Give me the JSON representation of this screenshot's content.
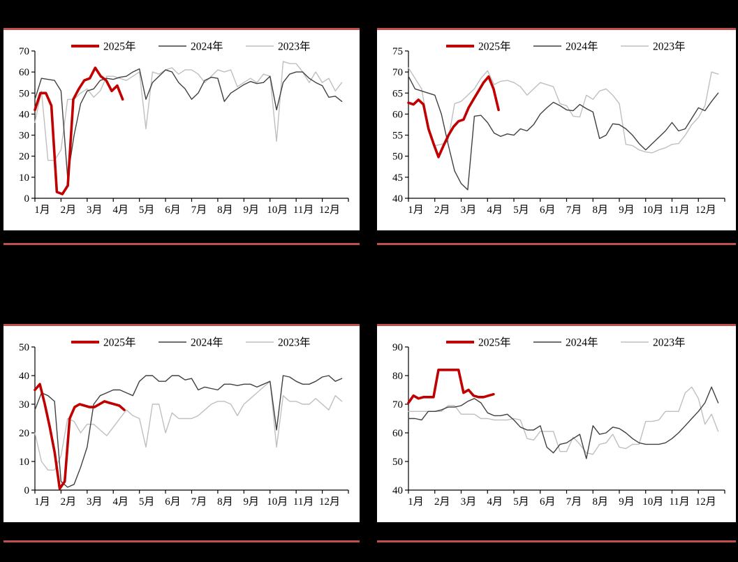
{
  "page": {
    "background": "#000000",
    "card_background": "#ffffff",
    "rule_color": "#C0504D",
    "text_color": "#000000",
    "axis_color": "#000000"
  },
  "chart_data": [
    {
      "id": "top-left",
      "type": "line",
      "grid": false,
      "legend_position": "top",
      "legend": [
        "2025年",
        "2024年",
        "2023年"
      ],
      "x_categories": [
        "1月",
        "2月",
        "3月",
        "4月",
        "5月",
        "6月",
        "7月",
        "8月",
        "9月",
        "10月",
        "11月",
        "12月"
      ],
      "ylim": [
        0,
        70
      ],
      "ytick_step": 10,
      "series": [
        {
          "name": "2025年",
          "color": "#C00000",
          "stroke_width": 3.6,
          "x_step_months": 0.21,
          "values": [
            42,
            50,
            50,
            44,
            3,
            2,
            6,
            47,
            52,
            56,
            57,
            62,
            58,
            56,
            51,
            53.5,
            47
          ]
        },
        {
          "name": "2024年",
          "color": "#404040",
          "stroke_width": 1.4,
          "x_step_months": 0.25,
          "values": [
            47,
            57,
            56.5,
            56,
            51,
            10,
            30,
            45,
            51,
            52,
            56,
            57,
            56.5,
            57.5,
            58,
            60,
            61.5,
            47,
            55,
            58,
            61,
            60,
            55,
            52,
            47,
            50,
            56,
            57.5,
            57,
            46,
            50,
            52,
            54,
            55.5,
            54.5,
            55,
            58,
            42,
            55,
            59,
            60,
            60,
            57,
            55,
            53.5,
            48,
            48.5,
            46
          ]
        },
        {
          "name": "2023年",
          "color": "#BFBFBF",
          "stroke_width": 1.4,
          "x_step_months": 0.25,
          "values": [
            36,
            51,
            18,
            18,
            23,
            47,
            47,
            50,
            52,
            48,
            51,
            58,
            58,
            57,
            56,
            58,
            60,
            33,
            60,
            59,
            61,
            62,
            59,
            61,
            61,
            59,
            55,
            58,
            61,
            60,
            61,
            53,
            55,
            57,
            55,
            59,
            58,
            27,
            65,
            64,
            64,
            60,
            55,
            60,
            55,
            57,
            51,
            55
          ]
        }
      ]
    },
    {
      "id": "top-right",
      "type": "line",
      "grid": false,
      "legend_position": "top",
      "legend": [
        "2025年",
        "2024年",
        "2023年"
      ],
      "x_categories": [
        "1月",
        "2月",
        "3月",
        "4月",
        "5月",
        "6月",
        "7月",
        "8月",
        "9月",
        "10月",
        "11月",
        "12月"
      ],
      "ylim": [
        40,
        75
      ],
      "ytick_step": 5,
      "series": [
        {
          "name": "2025年",
          "color": "#C00000",
          "stroke_width": 3.6,
          "x_step_months": 0.19,
          "values": [
            62.7,
            62.3,
            63.4,
            62.3,
            56.5,
            53,
            49.8,
            52.5,
            55,
            57,
            58.3,
            58.7,
            61.5,
            63.5,
            65.5,
            67.5,
            68.9,
            66,
            61
          ]
        },
        {
          "name": "2024年",
          "color": "#404040",
          "stroke_width": 1.4,
          "x_step_months": 0.25,
          "values": [
            69,
            66,
            65.5,
            65,
            64.5,
            60,
            53,
            46.5,
            43.5,
            42,
            59.5,
            59.7,
            58,
            55.5,
            54.7,
            55.3,
            55,
            56.5,
            56,
            57.5,
            60,
            61.5,
            62.8,
            62,
            61,
            60.8,
            62.3,
            61.3,
            60.5,
            54.2,
            55,
            57.7,
            57.5,
            56.5,
            55,
            53,
            51.5,
            53,
            54.5,
            56,
            58,
            56,
            56.5,
            59,
            61.5,
            60.8,
            63,
            65
          ]
        },
        {
          "name": "2023年",
          "color": "#BFBFBF",
          "stroke_width": 1.4,
          "x_step_months": 0.25,
          "values": [
            71,
            68.5,
            66,
            57,
            52.5,
            52.8,
            53.5,
            62.5,
            63,
            64.5,
            66,
            68.5,
            70.3,
            67,
            67.8,
            68,
            67.5,
            66.5,
            64.5,
            66,
            67.5,
            67,
            66.5,
            62.5,
            62,
            59.5,
            59.3,
            64.5,
            63.5,
            65.5,
            66,
            64.5,
            62.5,
            52.8,
            52.5,
            51.5,
            51,
            50.8,
            51.5,
            52,
            52.8,
            53,
            55,
            57.5,
            59.2,
            62,
            70,
            69.5
          ]
        }
      ]
    },
    {
      "id": "bottom-left",
      "type": "line",
      "grid": false,
      "legend_position": "top",
      "legend": [
        "2025年",
        "2024年",
        "2023年"
      ],
      "x_categories": [
        "1月",
        "2月",
        "3月",
        "4月",
        "5月",
        "6月",
        "7月",
        "8月",
        "9月",
        "10月",
        "11月",
        "12月"
      ],
      "ylim": [
        0,
        50
      ],
      "ytick_step": 10,
      "series": [
        {
          "name": "2025年",
          "color": "#C00000",
          "stroke_width": 3.6,
          "x_step_months": 0.19,
          "values": [
            35,
            37,
            30,
            22,
            13,
            0.5,
            3,
            25,
            29,
            30,
            29.5,
            29,
            29,
            30,
            31,
            30.5,
            30,
            29.5,
            28
          ]
        },
        {
          "name": "2024年",
          "color": "#404040",
          "stroke_width": 1.4,
          "x_step_months": 0.25,
          "values": [
            28,
            34,
            33,
            31,
            3,
            1,
            2,
            8,
            15,
            30,
            33,
            34,
            35,
            35,
            34,
            33,
            38,
            40,
            40,
            38,
            38,
            40,
            40,
            38.5,
            39,
            35,
            36,
            35.5,
            35,
            37,
            37,
            36.5,
            37,
            37,
            36,
            37,
            38,
            21,
            40,
            39.5,
            38,
            37,
            37,
            38,
            39.5,
            40,
            38,
            39
          ]
        },
        {
          "name": "2023年",
          "color": "#BFBFBF",
          "stroke_width": 1.4,
          "x_step_months": 0.25,
          "values": [
            20,
            10,
            7,
            7,
            12,
            25,
            24,
            20,
            23,
            23,
            21,
            19,
            22,
            25,
            28,
            26,
            25,
            15,
            30,
            30,
            20,
            27,
            25,
            25,
            25,
            26,
            28,
            30,
            31,
            31,
            30,
            26,
            30,
            32,
            34,
            36,
            38,
            15,
            33,
            31,
            31,
            30,
            30,
            32,
            30,
            28,
            33,
            31
          ]
        }
      ]
    },
    {
      "id": "bottom-right",
      "type": "line",
      "grid": false,
      "legend_position": "top",
      "legend": [
        "2025年",
        "2024年",
        "2023年"
      ],
      "x_categories": [
        "1月",
        "2月",
        "3月",
        "4月",
        "5月",
        "6月",
        "7月",
        "8月",
        "9月",
        "10月",
        "11月",
        "12月"
      ],
      "ylim": [
        40,
        90
      ],
      "ytick_step": 10,
      "series": [
        {
          "name": "2025年",
          "color": "#C00000",
          "stroke_width": 3.6,
          "x_step_months": 0.19,
          "values": [
            70.5,
            73,
            72,
            72.5,
            72.5,
            72.5,
            82,
            82,
            82,
            82,
            82,
            74,
            75,
            73,
            72.5,
            72.5,
            73,
            73.5
          ]
        },
        {
          "name": "2024年",
          "color": "#404040",
          "stroke_width": 1.4,
          "x_step_months": 0.25,
          "values": [
            65,
            65,
            64.5,
            67.5,
            67.5,
            68,
            69,
            69,
            69.5,
            71,
            72,
            70.5,
            67,
            66,
            66,
            66.5,
            64.5,
            62,
            61,
            61,
            62.5,
            55,
            53,
            56,
            56.5,
            58,
            59.5,
            51,
            62.5,
            59.5,
            60,
            62,
            61.5,
            60,
            58,
            56.5,
            56,
            56,
            56,
            56.5,
            58,
            60,
            62.5,
            65,
            67.5,
            70.5,
            76,
            70.5
          ]
        },
        {
          "name": "2023年",
          "color": "#BFBFBF",
          "stroke_width": 1.4,
          "x_step_months": 0.25,
          "values": [
            67.5,
            67.5,
            67.5,
            67.5,
            67.5,
            67.5,
            69.5,
            69.5,
            66.5,
            66.5,
            66.5,
            65,
            65,
            64.5,
            64.5,
            64.5,
            65,
            64.5,
            58,
            57.5,
            60.5,
            60.5,
            60.5,
            53.5,
            53.5,
            58.5,
            56,
            53,
            52.5,
            56,
            56.5,
            59.5,
            55,
            54.5,
            56,
            56,
            64,
            64,
            64.5,
            67.5,
            67.5,
            67.5,
            74,
            76,
            72,
            63,
            66.5,
            60.5
          ]
        }
      ]
    }
  ]
}
